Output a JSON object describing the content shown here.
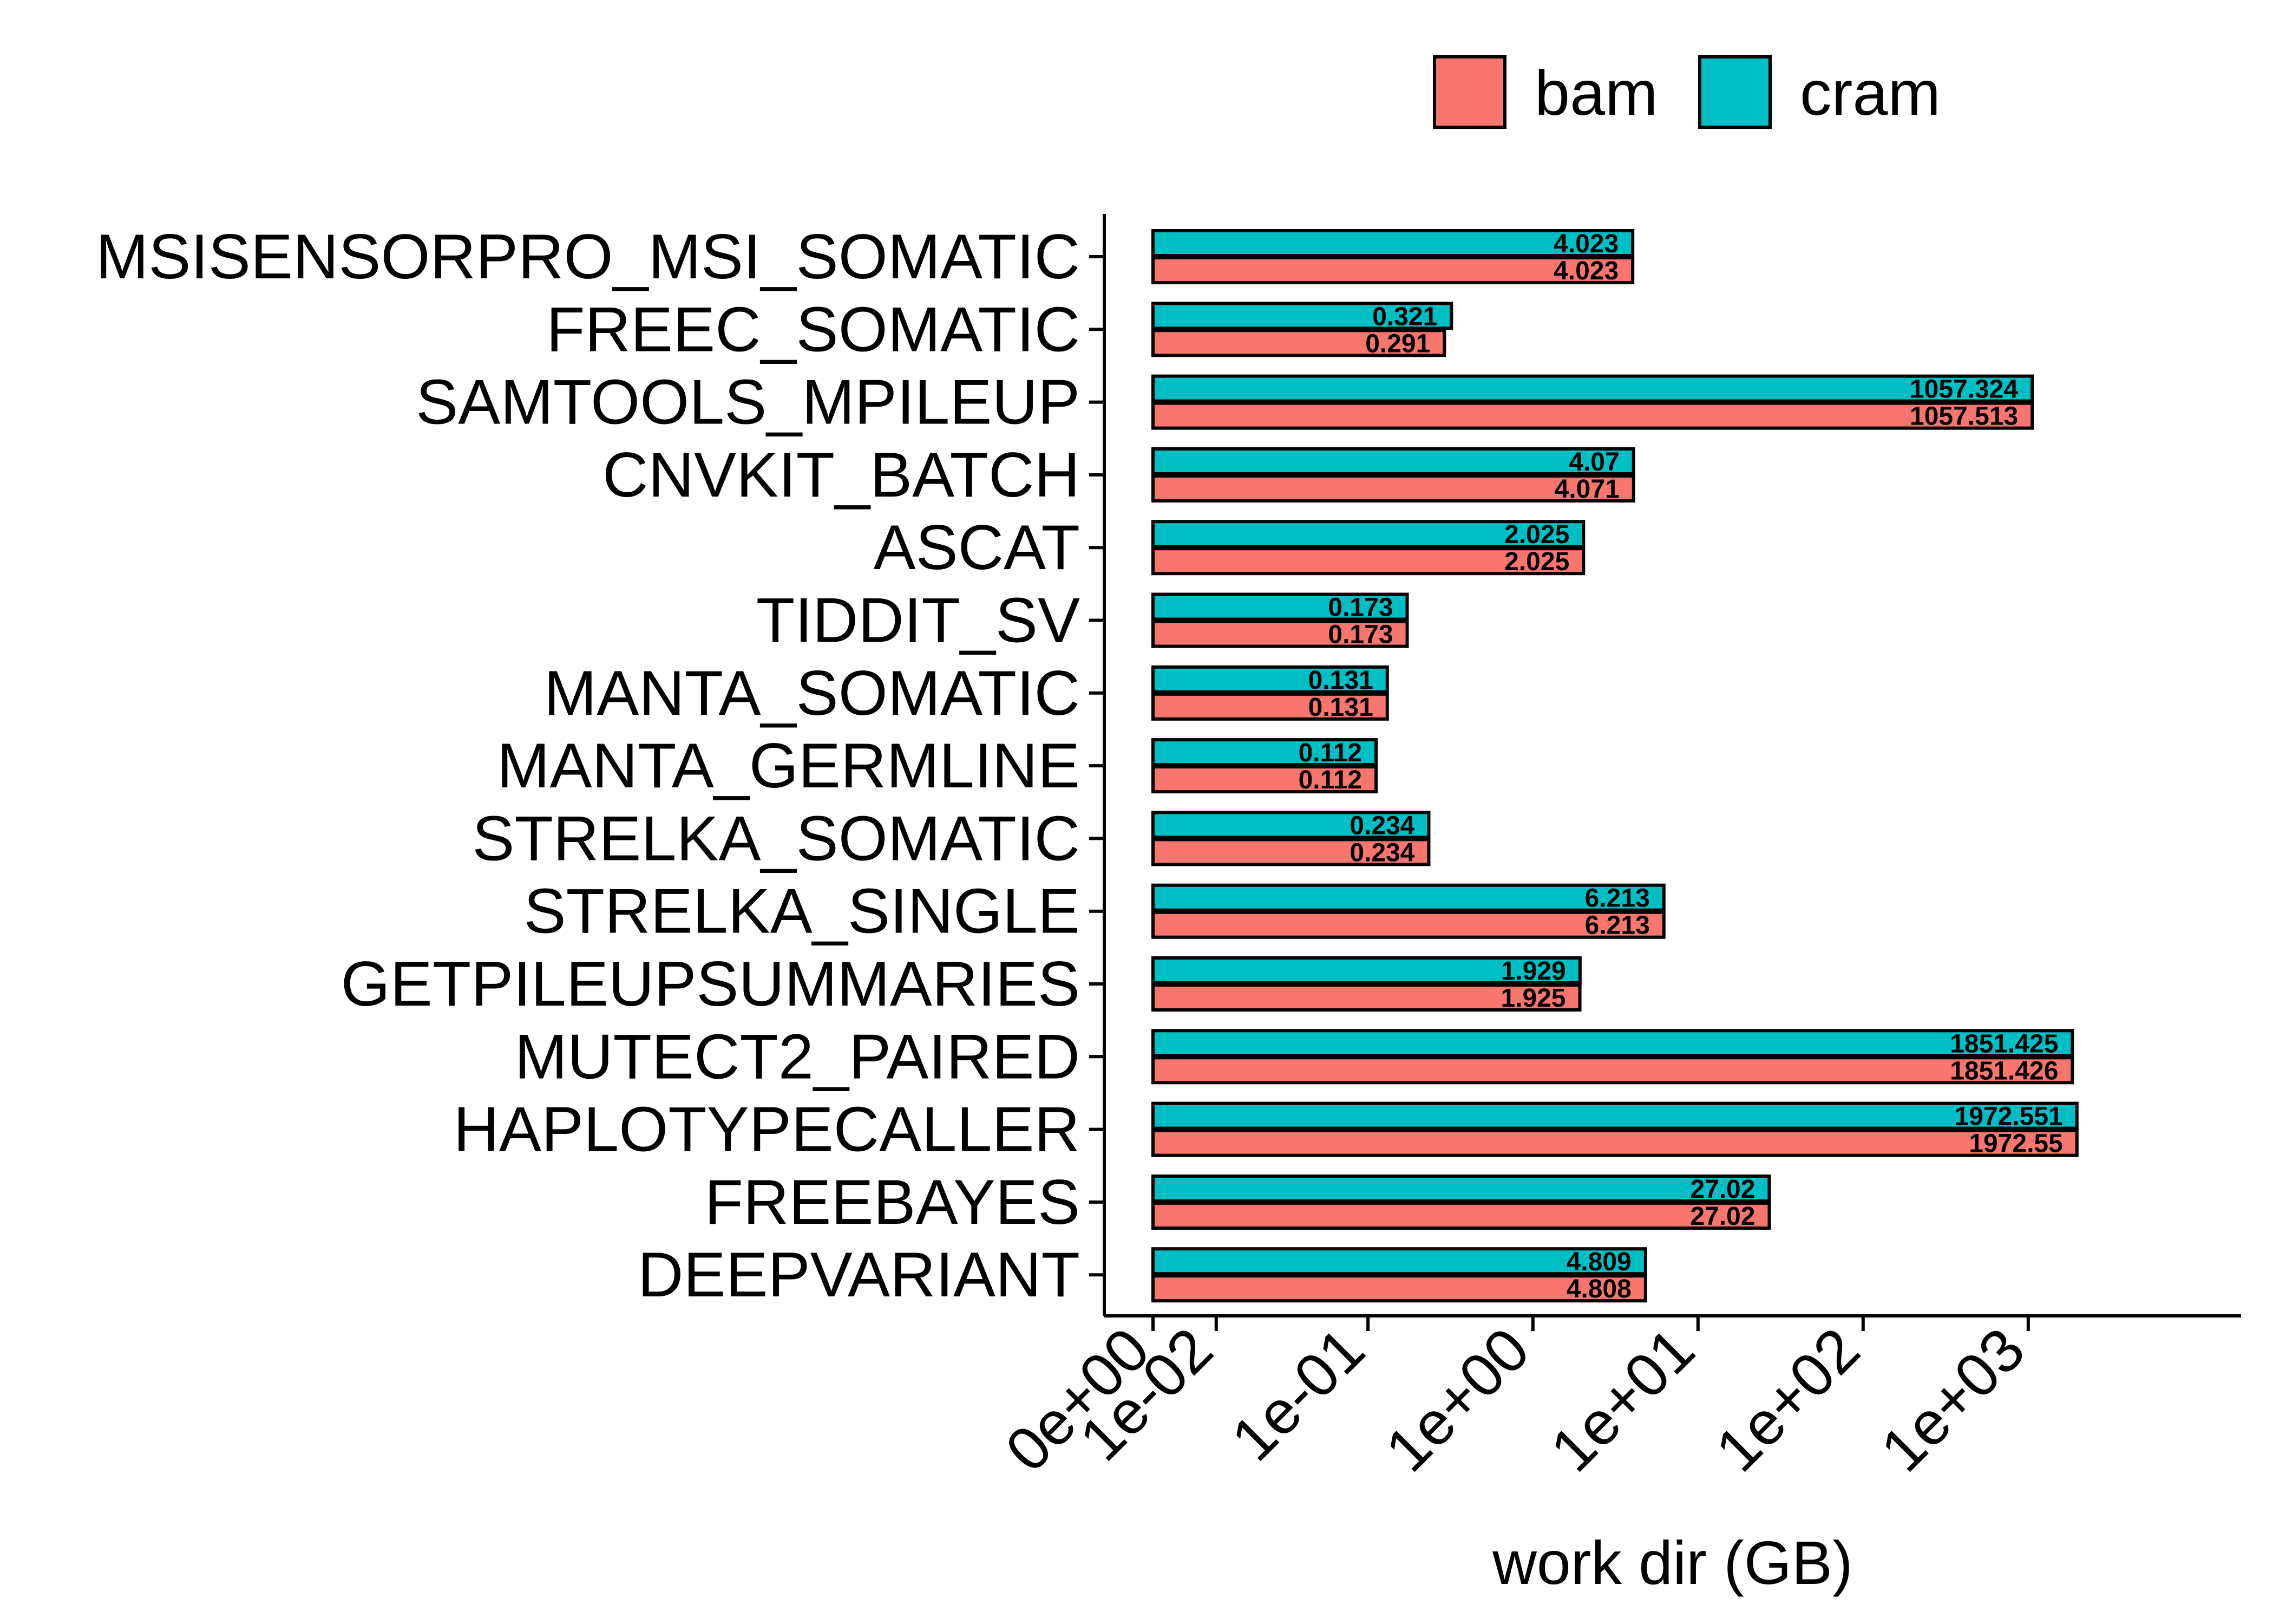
{
  "chart_data": {
    "type": "bar",
    "orientation": "horizontal",
    "scale": "pseudo-log",
    "categories": [
      "MSISENSORPRO_MSI_SOMATIC",
      "FREEC_SOMATIC",
      "SAMTOOLS_MPILEUP",
      "CNVKIT_BATCH",
      "ASCAT",
      "TIDDIT_SV",
      "MANTA_SOMATIC",
      "MANTA_GERMLINE",
      "STRELKA_SOMATIC",
      "STRELKA_SINGLE",
      "GETPILEUPSUMMARIES",
      "MUTECT2_PAIRED",
      "HAPLOTYPECALLER",
      "FREEBAYES",
      "DEEPVARIANT"
    ],
    "series": [
      {
        "name": "bam",
        "color": "#F8766D",
        "values": [
          4.023,
          0.291,
          1057.513,
          4.071,
          2.025,
          0.173,
          0.131,
          0.112,
          0.234,
          6.213,
          1.925,
          1851.426,
          1972.55,
          27.02,
          4.808
        ],
        "labels": [
          "4.023",
          "0.291",
          "1057.513",
          "4.071",
          "2.025",
          "0.173",
          "0.131",
          "0.112",
          "0.234",
          "6.213",
          "1.925",
          "1851.426",
          "1972.55",
          "27.02",
          "4.808"
        ]
      },
      {
        "name": "cram",
        "color": "#00BFC4",
        "values": [
          4.023,
          0.321,
          1057.324,
          4.07,
          2.025,
          0.173,
          0.131,
          0.112,
          0.234,
          6.213,
          1.929,
          1851.425,
          1972.551,
          27.02,
          4.809
        ],
        "labels": [
          "4.023",
          "0.321",
          "1057.324",
          "4.07",
          "2.025",
          "0.173",
          "0.131",
          "0.112",
          "0.234",
          "6.213",
          "1.929",
          "1851.425",
          "1972.551",
          "27.02",
          "4.809"
        ]
      }
    ],
    "x_ticks": [
      0,
      0.01,
      0.1,
      1,
      10,
      100,
      1000
    ],
    "x_tick_labels": [
      "0e+00",
      "1e-02",
      "1e-01",
      "1e+00",
      "1e+01",
      "1e+02",
      "1e+03"
    ],
    "xlabel": "work dir (GB)",
    "ylabel": "",
    "title": "",
    "grid": false,
    "legend_position": "top-right"
  }
}
